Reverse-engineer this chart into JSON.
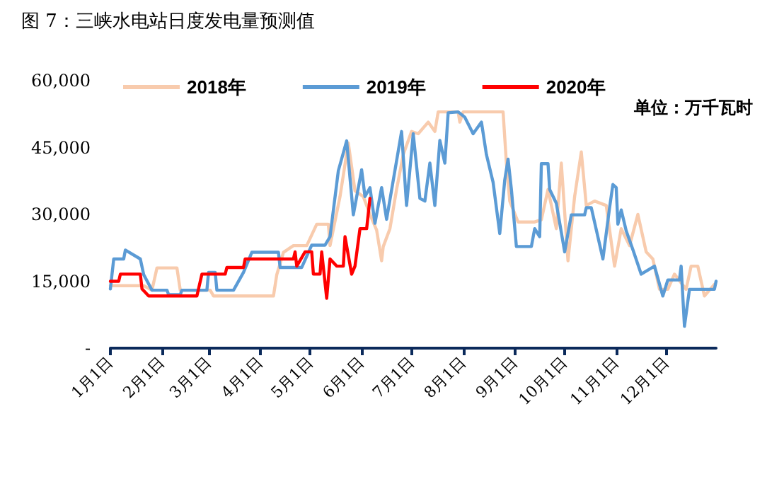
{
  "chart_data": {
    "type": "line",
    "title": "图 7：三峡水电站日度发电量预测值",
    "annotations": [
      "单位：万千瓦时"
    ],
    "xlim": [
      "--01-01",
      "--12-31"
    ],
    "xticks": [
      {
        "value": "--01-01",
        "label": "1月1日"
      },
      {
        "value": "--02-01",
        "label": "2月1日"
      },
      {
        "value": "--03-01",
        "label": "3月1日"
      },
      {
        "value": "--04-01",
        "label": "4月1日"
      },
      {
        "value": "--05-01",
        "label": "5月1日"
      },
      {
        "value": "--06-01",
        "label": "6月1日"
      },
      {
        "value": "--07-01",
        "label": "7月1日"
      },
      {
        "value": "--08-01",
        "label": "8月1日"
      },
      {
        "value": "--09-01",
        "label": "9月1日"
      },
      {
        "value": "--10-01",
        "label": "10月1日"
      },
      {
        "value": "--11-01",
        "label": "11月1日"
      },
      {
        "value": "--12-01",
        "label": "12月1日"
      }
    ],
    "ylim": [
      0,
      60000
    ],
    "yticks": [
      {
        "value": 0,
        "label": "-"
      },
      {
        "value": 15000,
        "label": "15,000"
      },
      {
        "value": 30000,
        "label": "30,000"
      },
      {
        "value": 45000,
        "label": "45,000"
      },
      {
        "value": 60000,
        "label": "60,000"
      }
    ],
    "grid": false,
    "legend": "top",
    "marker": "none",
    "line_style": "solid",
    "series": [
      {
        "name": "2018年",
        "color": "#f8cbad",
        "x": [
          "--01-01",
          "--01-21",
          "--01-26",
          "--01-29",
          "--02-10",
          "--02-12",
          "--03-02",
          "--03-04",
          "--04-09",
          "--04-11",
          "--04-15",
          "--04-21",
          "--04-29",
          "--05-05",
          "--05-12",
          "--05-13",
          "--05-19",
          "--05-24",
          "--05-28",
          "--06-02",
          "--06-06",
          "--06-10",
          "--06-13",
          "--06-14",
          "--06-18",
          "--06-22",
          "--06-26",
          "--07-01",
          "--07-05",
          "--07-11",
          "--07-15",
          "--07-17",
          "--07-29",
          "--07-30",
          "--08-01",
          "--08-25",
          "--08-27",
          "--08-29",
          "--09-03",
          "--09-13",
          "--09-17",
          "--09-21",
          "--09-26",
          "--09-29",
          "--10-03",
          "--10-07",
          "--10-11",
          "--10-14",
          "--10-19",
          "--10-26",
          "--10-31",
          "--11-04",
          "--11-09",
          "--11-14",
          "--11-19",
          "--11-23",
          "--11-27",
          "--12-02",
          "--12-06",
          "--12-13",
          "--12-16",
          "--12-20",
          "--12-24",
          "--12-30"
        ],
        "values": [
          14000,
          14000,
          13000,
          18000,
          18000,
          13000,
          13000,
          11700,
          11700,
          16500,
          21500,
          23000,
          23000,
          27800,
          27800,
          23000,
          34000,
          46000,
          35300,
          34000,
          30000,
          26500,
          19600,
          22800,
          26800,
          35600,
          43400,
          48600,
          48100,
          50700,
          48600,
          53000,
          53000,
          50700,
          53000,
          53000,
          41500,
          33000,
          28300,
          28300,
          28800,
          35600,
          26800,
          41500,
          19600,
          34000,
          44000,
          32000,
          33000,
          32000,
          18400,
          26800,
          23000,
          30000,
          21600,
          20000,
          13200,
          13200,
          16600,
          13200,
          18400,
          18400,
          11700,
          14300
        ]
      },
      {
        "name": "2019年",
        "color": "#5b9bd5",
        "x": [
          "--01-01",
          "--01-03",
          "--01-09",
          "--01-10",
          "--01-19",
          "--01-21",
          "--01-26",
          "--02-04",
          "--02-05",
          "--02-12",
          "--02-13",
          "--02-28",
          "--03-01",
          "--03-05",
          "--03-06",
          "--03-16",
          "--03-22",
          "--03-27",
          "--04-12",
          "--04-13",
          "--04-26",
          "--05-02",
          "--05-10",
          "--05-13",
          "--05-18",
          "--05-23",
          "--05-27",
          "--06-01",
          "--06-03",
          "--06-06",
          "--06-09",
          "--06-13",
          "--06-16",
          "--06-25",
          "--06-28",
          "--07-02",
          "--07-06",
          "--07-09",
          "--07-12",
          "--07-15",
          "--07-18",
          "--07-21",
          "--07-23",
          "--07-29",
          "--08-02",
          "--08-07",
          "--08-12",
          "--08-15",
          "--08-19",
          "--08-23",
          "--08-26",
          "--08-28",
          "--08-30",
          "--09-02",
          "--09-11",
          "--09-13",
          "--09-16",
          "--09-17",
          "--09-21",
          "--09-22",
          "--09-26",
          "--10-01",
          "--10-05",
          "--10-13",
          "--10-14",
          "--10-17",
          "--10-24",
          "--10-28",
          "--10-30",
          "--11-01",
          "--11-02",
          "--11-04",
          "--11-07",
          "--11-11",
          "--11-16",
          "--11-24",
          "--11-29",
          "--12-02",
          "--12-09",
          "--12-10",
          "--12-12",
          "--12-15",
          "--12-30",
          "--12-31"
        ],
        "values": [
          13300,
          20000,
          20000,
          22000,
          20000,
          16500,
          13000,
          13000,
          12000,
          12000,
          13000,
          13000,
          17000,
          17000,
          13000,
          13000,
          17000,
          21500,
          21500,
          18100,
          18100,
          23100,
          23100,
          25000,
          39800,
          46500,
          29900,
          40000,
          34000,
          36000,
          28000,
          36000,
          28900,
          48600,
          32000,
          48100,
          33600,
          33000,
          41500,
          32000,
          46600,
          41500,
          52800,
          53000,
          51800,
          48100,
          50700,
          43400,
          37200,
          25700,
          37700,
          42400,
          35600,
          22800,
          22800,
          26800,
          25000,
          41400,
          41400,
          35600,
          32500,
          21600,
          29900,
          29900,
          31500,
          31500,
          20000,
          31500,
          36700,
          36000,
          27800,
          31000,
          26300,
          22100,
          16600,
          18400,
          11700,
          15300,
          15300,
          18400,
          4900,
          13200,
          13200,
          15000
        ]
      },
      {
        "name": "2020年",
        "color": "#ff0000",
        "x": [
          "--01-01",
          "--01-06",
          "--01-07",
          "--01-19",
          "--01-20",
          "--01-24",
          "--02-22",
          "--02-25",
          "--03-11",
          "--03-12",
          "--03-22",
          "--03-23",
          "--04-21",
          "--04-22",
          "--04-23",
          "--04-28",
          "--05-02",
          "--05-03",
          "--05-07",
          "--05-08",
          "--05-11",
          "--05-13",
          "--05-17",
          "--05-21",
          "--05-22",
          "--05-26",
          "--05-28",
          "--05-31",
          "--06-04",
          "--06-06"
        ],
        "values": [
          15000,
          15000,
          16600,
          16600,
          13300,
          11700,
          11700,
          16600,
          16600,
          18100,
          18100,
          20000,
          20000,
          21600,
          18400,
          21600,
          21600,
          16600,
          16600,
          21600,
          11200,
          20000,
          18400,
          18400,
          25000,
          16600,
          18400,
          26800,
          26800,
          33600
        ]
      }
    ]
  }
}
